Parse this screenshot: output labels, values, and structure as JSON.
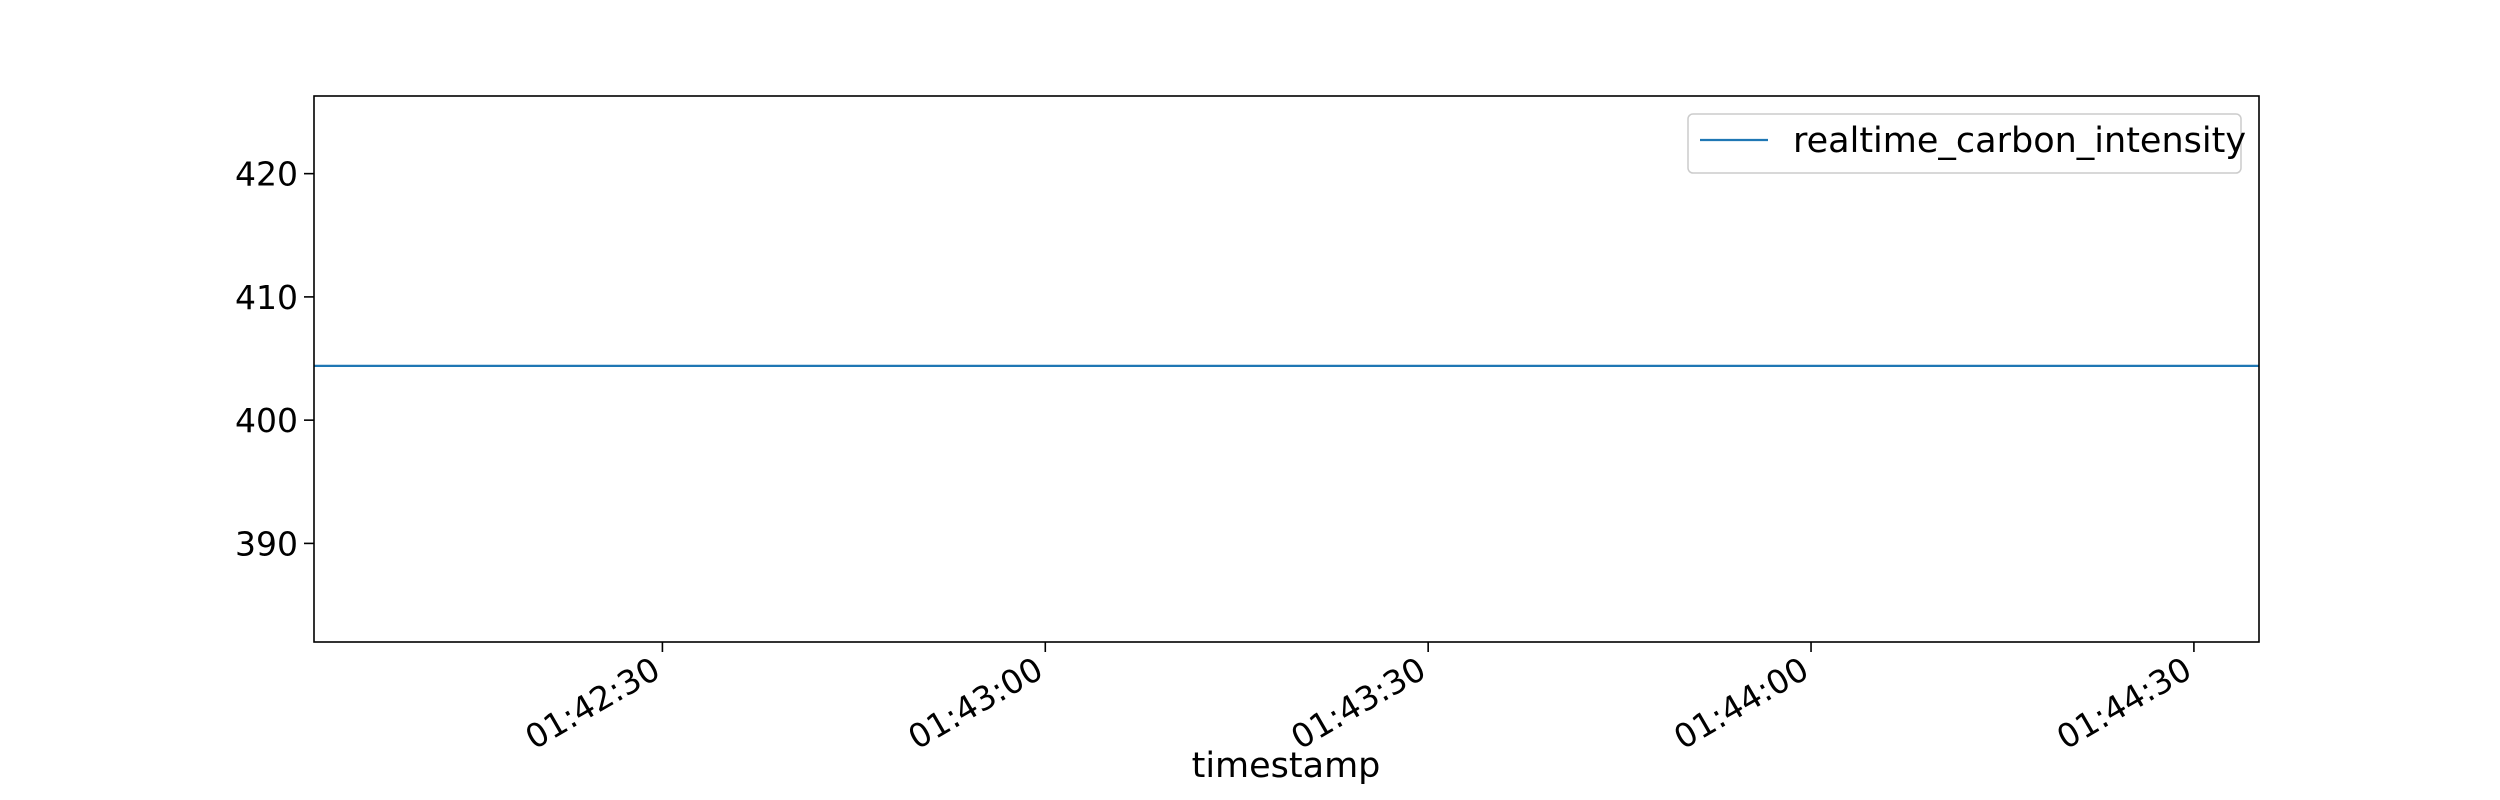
{
  "chart_data": {
    "type": "line",
    "title": "",
    "xlabel": "timestamp",
    "ylabel": "",
    "x_ticks": [
      "01:42:30",
      "01:43:00",
      "01:43:30",
      "01:44:00",
      "01:44:30"
    ],
    "x_tick_seconds": [
      6150,
      6180,
      6210,
      6240,
      6270
    ],
    "xlim_seconds": [
      6122.7,
      6275.1
    ],
    "y_ticks": [
      390,
      400,
      410,
      420
    ],
    "ylim": [
      382,
      426.3
    ],
    "grid": false,
    "legend_position": "top-right",
    "series": [
      {
        "name": "realtime_carbon_intensity",
        "color": "#1f77b4",
        "x_seconds": [
          6122.7,
          6275.1
        ],
        "y": [
          404.4,
          404.4
        ]
      }
    ]
  }
}
